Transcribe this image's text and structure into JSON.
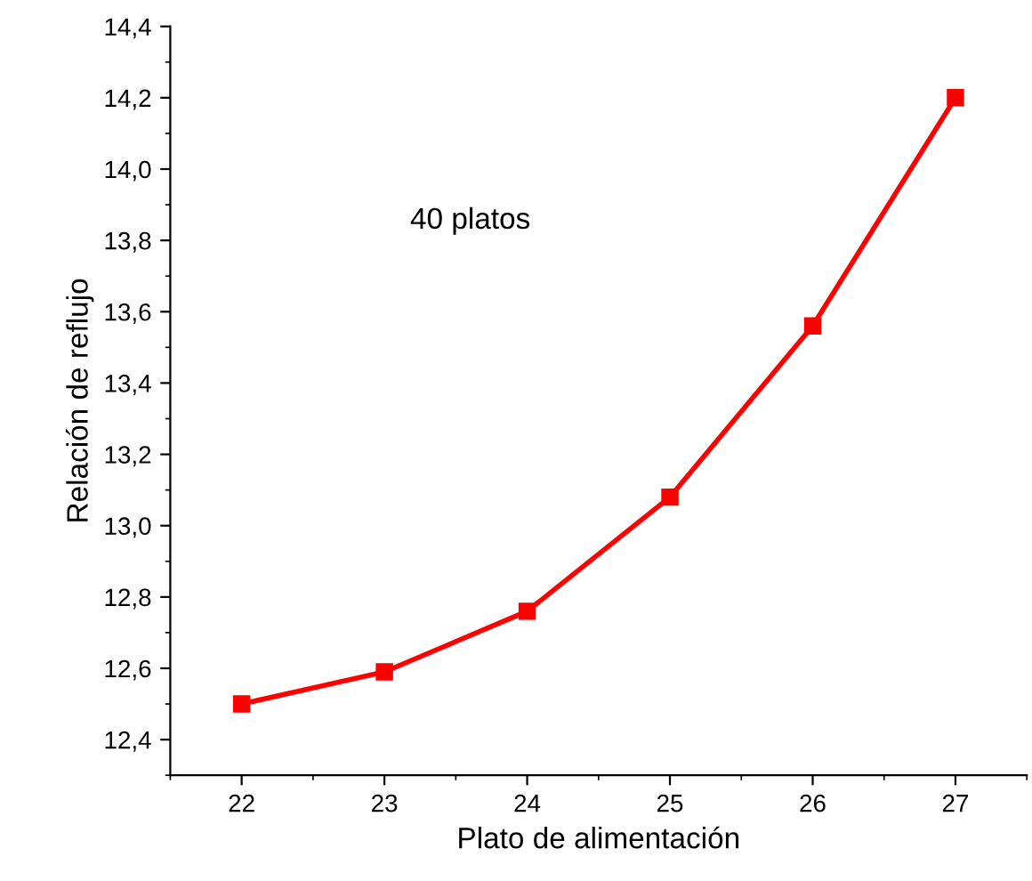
{
  "chart_data": {
    "type": "line",
    "xlabel": "Plato de alimentación",
    "ylabel": "Relación de reflujo",
    "x": [
      22,
      23,
      24,
      25,
      26,
      27
    ],
    "series": [
      {
        "color": "#ff0000",
        "values": [
          12.5,
          12.59,
          12.76,
          13.08,
          13.56,
          14.2
        ]
      }
    ],
    "xlim": [
      21.5,
      27.5
    ],
    "xticks": [
      22,
      23,
      24,
      25,
      26,
      27
    ],
    "ylim": [
      12.3,
      14.4
    ],
    "yticks": [
      {
        "value": 12.4,
        "label": "12,4"
      },
      {
        "value": 12.6,
        "label": "12,6"
      },
      {
        "value": 12.8,
        "label": "12,8"
      },
      {
        "value": 13.0,
        "label": "13,0"
      },
      {
        "value": 13.2,
        "label": "13,2"
      },
      {
        "value": 13.4,
        "label": "13,4"
      },
      {
        "value": 13.6,
        "label": "13,6"
      },
      {
        "value": 13.8,
        "label": "13,8"
      },
      {
        "value": 14.0,
        "label": "14,0"
      },
      {
        "value": 14.2,
        "label": "14,2"
      },
      {
        "value": 14.4,
        "label": "14,4"
      }
    ],
    "annotations": [
      "40 platos"
    ],
    "marker": "square",
    "line_style": "solid",
    "grid": false,
    "legend": false
  }
}
